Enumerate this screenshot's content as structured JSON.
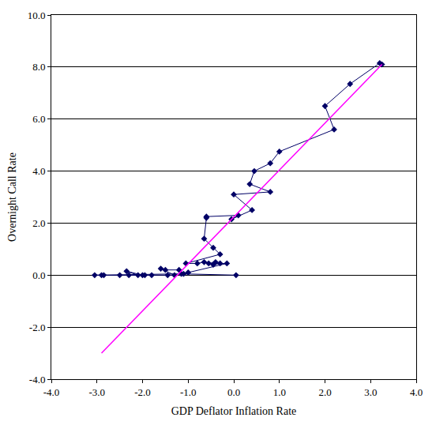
{
  "chart_data": {
    "type": "line",
    "x_label": "GDP Deflator Inflation Rate",
    "y_label": "Overnight Call Rate",
    "series": [
      {
        "color": "#000066",
        "marker": "diamond",
        "line_style": "solid",
        "x": [
          3.25,
          3.2,
          2.55,
          2.0,
          2.2,
          1.0,
          0.8,
          0.45,
          0.35,
          0.8,
          0.0,
          0.4,
          -0.05,
          0.1,
          -0.6,
          -0.6,
          -0.65,
          -0.45,
          -0.3,
          -1.05,
          -0.8,
          -0.65,
          -0.55,
          -0.4,
          -0.45,
          -0.3,
          -0.15,
          -1.0,
          -1.1,
          -1.2,
          -1.5,
          -1.6,
          -1.3,
          -1.45,
          -1.8,
          -2.0,
          -2.35,
          -2.1,
          -2.3,
          -1.95,
          -2.5,
          -3.05,
          -2.85,
          -2.9,
          -1.15,
          0.05
        ],
        "values": [
          8.1,
          8.15,
          7.35,
          6.5,
          5.6,
          4.75,
          4.3,
          4.0,
          3.5,
          3.2,
          3.1,
          2.5,
          2.15,
          2.3,
          2.25,
          2.2,
          1.4,
          1.05,
          0.8,
          0.45,
          0.45,
          0.5,
          0.45,
          0.5,
          0.4,
          0.45,
          0.45,
          0.1,
          0.05,
          0.2,
          0.2,
          0.25,
          0.0,
          0.0,
          0.0,
          0.0,
          0.15,
          0.0,
          0.0,
          0.0,
          0.0,
          0.0,
          0.0,
          0.0,
          0.05,
          0.0
        ]
      },
      {
        "color": "#ff00ff",
        "marker": "none",
        "line_style": "solid",
        "x": [
          -2.9,
          3.25
        ],
        "values": [
          -3.0,
          8.1
        ]
      }
    ],
    "xlim": [
      -4,
      4
    ],
    "xticks": [
      {
        "value": -4,
        "label": "-4.0"
      },
      {
        "value": -3,
        "label": "-3.0"
      },
      {
        "value": -2,
        "label": "-2.0"
      },
      {
        "value": -1,
        "label": "-1.0"
      },
      {
        "value": 0,
        "label": "0.0"
      },
      {
        "value": 1,
        "label": "1.0"
      },
      {
        "value": 2,
        "label": "2.0"
      },
      {
        "value": 3,
        "label": "3.0"
      },
      {
        "value": 4,
        "label": "4.0"
      }
    ],
    "ylim": [
      -4,
      10
    ],
    "yticks": [
      {
        "value": -4,
        "label": "-4.0"
      },
      {
        "value": -2,
        "label": "-2.0"
      },
      {
        "value": 0,
        "label": "0.0"
      },
      {
        "value": 2,
        "label": "2.0"
      },
      {
        "value": 4,
        "label": "4.0"
      },
      {
        "value": 6,
        "label": "6.0"
      },
      {
        "value": 8,
        "label": "8.0"
      },
      {
        "value": 10,
        "label": "10.0"
      }
    ],
    "grid": true
  }
}
